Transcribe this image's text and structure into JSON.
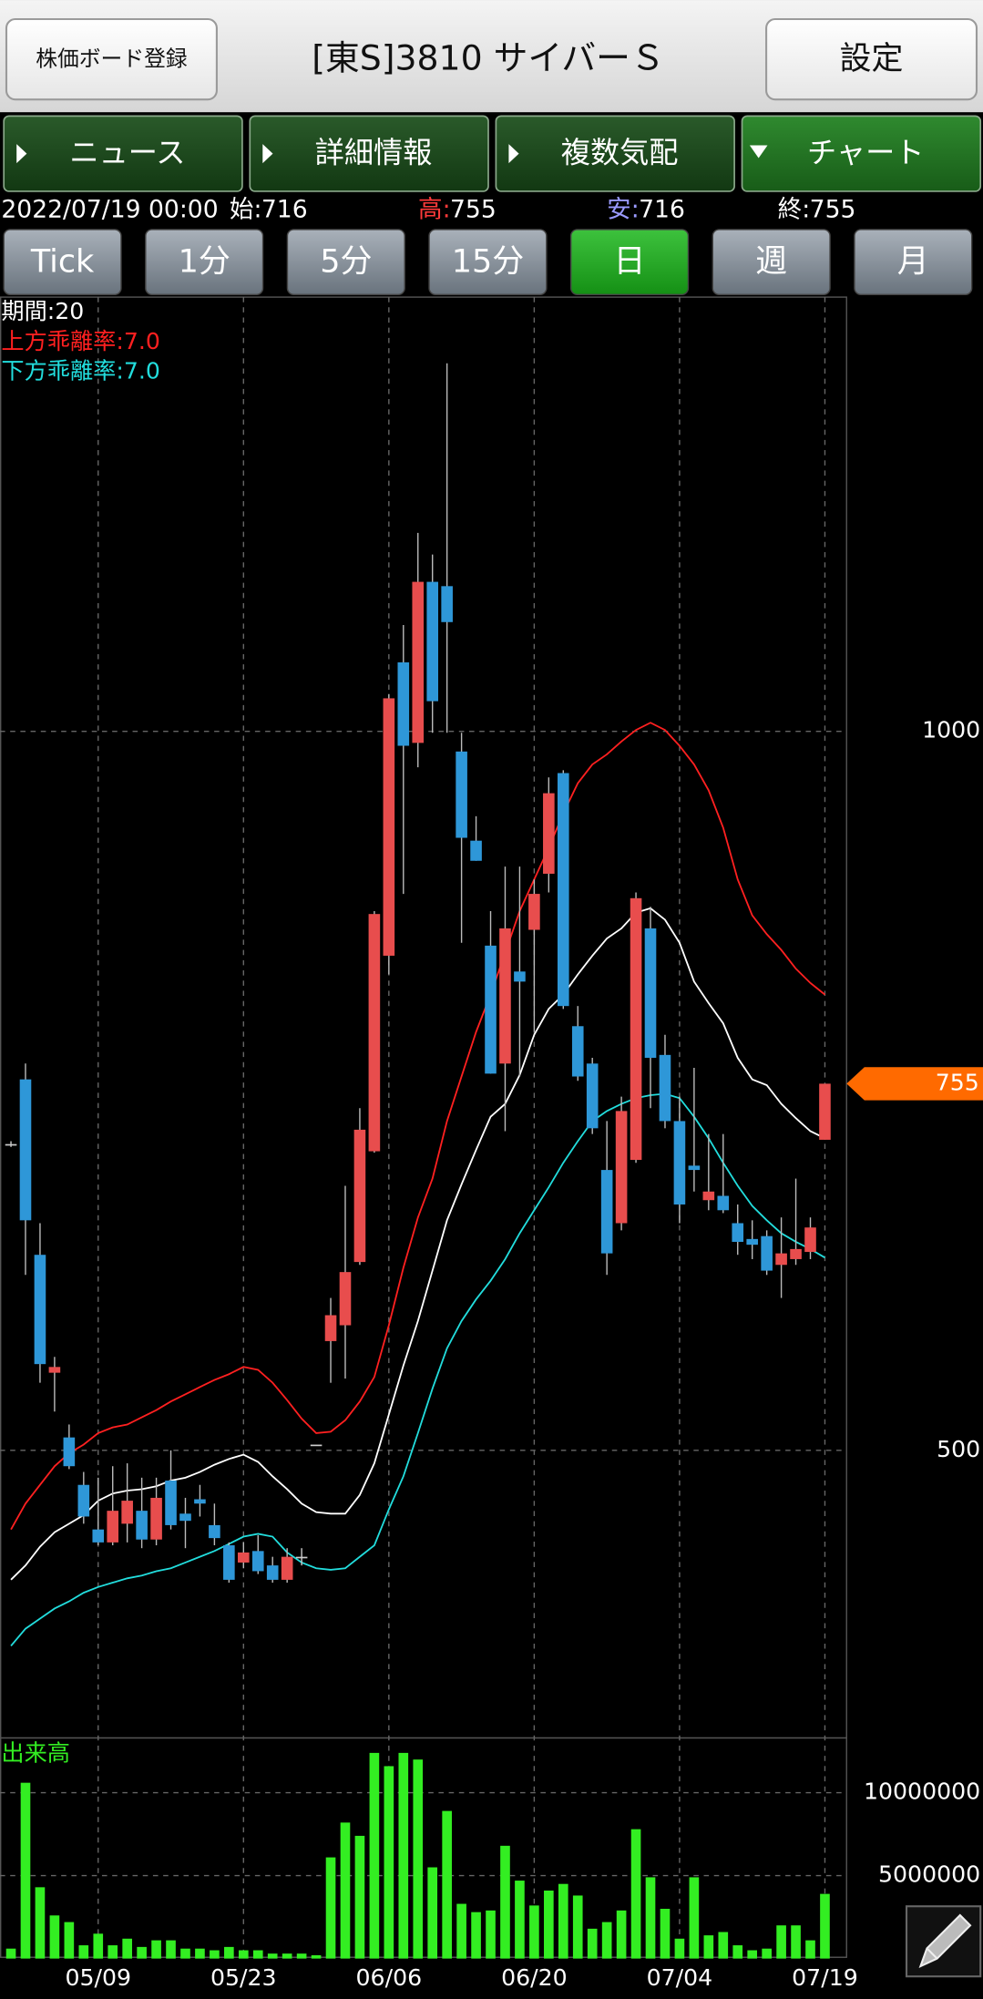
{
  "header": {
    "register_button": "株価ボード登録",
    "title": "[東S]3810 サイバーＳ",
    "settings_button": "設定"
  },
  "tabs": [
    "ニュース",
    "詳細情報",
    "複数気配",
    "チャート"
  ],
  "active_tab": "チャート",
  "ohlc_info": {
    "date": "2022/07/19 00:00",
    "open_label": "始:",
    "open": 716,
    "high_label": "高:",
    "high": 755,
    "low_label": "安:",
    "low": 716,
    "close_label": "終:",
    "close": 755
  },
  "intervals": [
    "Tick",
    "1分",
    "5分",
    "15分",
    "日",
    "週",
    "月"
  ],
  "active_interval": "日",
  "chart_data": [
    {
      "type": "candlestick",
      "up_color": "#e84d4d",
      "down_color": "#2e97d8",
      "ylim": [
        300,
        1302
      ],
      "yticks": [
        500,
        1000
      ],
      "grid": true,
      "current_price": 755,
      "current_price_color": "#ff6a00",
      "open": [
        713,
        758,
        636,
        554,
        509,
        476,
        445,
        436,
        449,
        458,
        438,
        479,
        456,
        466,
        448,
        434,
        422,
        430,
        420,
        410,
        426,
        504,
        576,
        587,
        631,
        708,
        844,
        1048,
        992,
        1104,
        1101,
        986,
        924,
        851,
        769,
        833,
        862,
        901,
        971,
        795,
        769,
        695,
        658,
        702,
        863,
        775,
        729,
        698,
        674,
        677,
        658,
        647,
        649,
        629,
        633,
        638,
        716
      ],
      "high": [
        715,
        769,
        658,
        565,
        518,
        485,
        481,
        489,
        491,
        481,
        481,
        500,
        467,
        476,
        463,
        436,
        436,
        441,
        426,
        432,
        432,
        504,
        606,
        684,
        738,
        875,
        1026,
        1074,
        1138,
        1123,
        1256,
        999,
        941,
        875,
        906,
        906,
        897,
        968,
        973,
        809,
        773,
        729,
        746,
        888,
        878,
        789,
        746,
        766,
        720,
        720,
        671,
        660,
        653,
        662,
        689,
        662,
        755
      ],
      "low": [
        711,
        622,
        547,
        527,
        487,
        449,
        434,
        434,
        436,
        432,
        434,
        445,
        432,
        454,
        434,
        408,
        418,
        414,
        408,
        408,
        420,
        504,
        547,
        550,
        629,
        707,
        831,
        887,
        975,
        999,
        999,
        853,
        910,
        762,
        722,
        760,
        791,
        888,
        807,
        757,
        720,
        622,
        653,
        700,
        738,
        724,
        658,
        680,
        667,
        665,
        636,
        633,
        622,
        606,
        629,
        633,
        716
      ],
      "close": [
        713,
        660,
        560,
        558,
        489,
        454,
        436,
        458,
        465,
        438,
        467,
        448,
        451,
        463,
        439,
        410,
        429,
        416,
        410,
        426,
        426,
        504,
        594,
        624,
        723,
        873,
        1023,
        990,
        1104,
        1021,
        1076,
        926,
        910,
        762,
        863,
        826,
        887,
        957,
        809,
        760,
        724,
        637,
        736,
        884,
        773,
        729,
        671,
        695,
        680,
        667,
        645,
        643,
        625,
        637,
        640,
        655,
        755
      ],
      "series": [
        {
          "name": "期間:20",
          "color": "#ffffff",
          "values": [
            410,
            420,
            433,
            443,
            449,
            455,
            465,
            470,
            472,
            473,
            475,
            479,
            481,
            485,
            490,
            494,
            497,
            492,
            482,
            473,
            463,
            457,
            456,
            456,
            469,
            491,
            525,
            559,
            590,
            625,
            660,
            685,
            709,
            732,
            741,
            761,
            789,
            807,
            817,
            831,
            844,
            856,
            863,
            874,
            877,
            869,
            853,
            826,
            811,
            797,
            773,
            758,
            754,
            741,
            731,
            722,
            717
          ]
        },
        {
          "name": "上方乖離率:7.0",
          "color": "#ff2020",
          "values": [
            445,
            463,
            476,
            489,
            498,
            504,
            512,
            516,
            518,
            523,
            528,
            534,
            539,
            544,
            549,
            553,
            558,
            556,
            547,
            535,
            522,
            512,
            513,
            521,
            534,
            551,
            587,
            627,
            662,
            689,
            729,
            760,
            791,
            817,
            846,
            875,
            897,
            919,
            943,
            964,
            977,
            984,
            993,
            1001,
            1006,
            1001,
            990,
            977,
            959,
            933,
            897,
            872,
            859,
            848,
            835,
            825,
            817
          ]
        },
        {
          "name": "下方乖離率:7.0",
          "color": "#22dddd",
          "values": [
            364,
            376,
            383,
            390,
            395,
            401,
            405,
            408,
            411,
            413,
            416,
            418,
            422,
            426,
            430,
            435,
            440,
            442,
            440,
            429,
            422,
            418,
            417,
            418,
            426,
            434,
            459,
            482,
            512,
            543,
            571,
            590,
            605,
            618,
            633,
            651,
            667,
            683,
            700,
            715,
            729,
            736,
            741,
            745,
            747,
            748,
            745,
            732,
            717,
            700,
            684,
            670,
            660,
            651,
            645,
            640,
            634
          ]
        }
      ]
    },
    {
      "type": "bar",
      "title": "出来高",
      "color": "#33ee22",
      "ylim": [
        0,
        13300000
      ],
      "yticks": [
        5000000,
        10000000
      ],
      "grid": true,
      "categories": [
        null,
        null,
        null,
        null,
        null,
        null,
        "05/09",
        null,
        null,
        null,
        null,
        null,
        null,
        null,
        null,
        null,
        "05/23",
        null,
        null,
        null,
        null,
        null,
        null,
        null,
        null,
        null,
        "06/06",
        null,
        null,
        null,
        null,
        null,
        null,
        null,
        null,
        null,
        "06/20",
        null,
        null,
        null,
        null,
        null,
        null,
        null,
        null,
        null,
        "07/04",
        null,
        null,
        null,
        null,
        null,
        null,
        null,
        null,
        null,
        "07/19"
      ],
      "values": [
        600000,
        10600000,
        4300000,
        2600000,
        2200000,
        800000,
        1500000,
        800000,
        1200000,
        700000,
        1100000,
        1100000,
        600000,
        600000,
        500000,
        700000,
        500000,
        500000,
        300000,
        300000,
        300000,
        200000,
        6100000,
        8200000,
        7400000,
        12400000,
        11600000,
        12400000,
        12000000,
        5500000,
        8900000,
        3300000,
        2800000,
        2900000,
        6800000,
        4700000,
        3200000,
        4100000,
        4500000,
        3800000,
        1800000,
        2200000,
        2900000,
        7800000,
        4900000,
        3000000,
        1200000,
        4900000,
        1400000,
        1600000,
        800000,
        500000,
        600000,
        2000000,
        2000000,
        1100000,
        3900000
      ]
    }
  ]
}
